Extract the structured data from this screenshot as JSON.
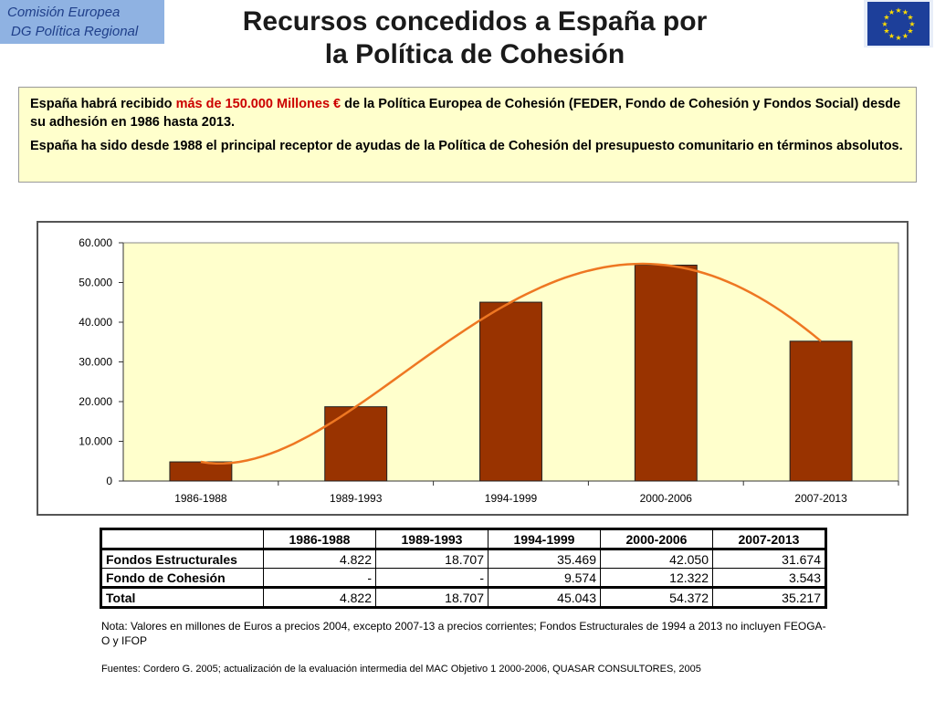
{
  "logo": {
    "line1": "Comisión Europea",
    "line2": "DG Política Regional"
  },
  "title": {
    "line1": "Recursos concedidos a España por",
    "line2": "la Política de Cohesión"
  },
  "intro": {
    "p1_before": "España habrá recibido ",
    "p1_highlight": "más de 150.000 Millones €",
    "p1_after": " de la Política Europea de Cohesión (FEDER, Fondo de Cohesión y Fondos Social) desde su adhesión en 1986 hasta 2013.",
    "p2": "España ha sido desde 1988 el principal receptor de ayudas de la Política de Cohesión del presupuesto comunitario en términos absolutos."
  },
  "chart_data": {
    "type": "bar",
    "categories": [
      "1986-1988",
      "1989-1993",
      "1994-1999",
      "2000-2006",
      "2007-2013"
    ],
    "values": [
      4822,
      18707,
      45043,
      54372,
      35217
    ],
    "yticks": [
      "0",
      "10.000",
      "20.000",
      "30.000",
      "40.000",
      "50.000",
      "60.000"
    ],
    "ylim": [
      0,
      60000
    ],
    "trendline": true,
    "colors": {
      "bar": "#993300",
      "trend": "#ee7722",
      "plot_bg": "#ffffcc"
    }
  },
  "table": {
    "headers": [
      "",
      "1986-1988",
      "1989-1993",
      "1994-1999",
      "2000-2006",
      "2007-2013"
    ],
    "rows": [
      {
        "label": "Fondos Estructurales",
        "values": [
          "4.822",
          "18.707",
          "35.469",
          "42.050",
          "31.674"
        ]
      },
      {
        "label": "Fondo de Cohesión",
        "values": [
          "-",
          "-",
          "9.574",
          "12.322",
          "3.543"
        ]
      },
      {
        "label": "Total",
        "values": [
          "4.822",
          "18.707",
          "45.043",
          "54.372",
          "35.217"
        ]
      }
    ]
  },
  "note": "Nota: Valores en millones de Euros a precios 2004, excepto  2007-13 a precios corrientes; Fondos Estructurales de 1994 a 2013 no incluyen FEOGA-O y IFOP",
  "source": "Fuentes: Cordero G. 2005; actualización de la evaluación intermedia del MAC Objetivo 1 2000-2006, QUASAR CONSULTORES, 2005"
}
